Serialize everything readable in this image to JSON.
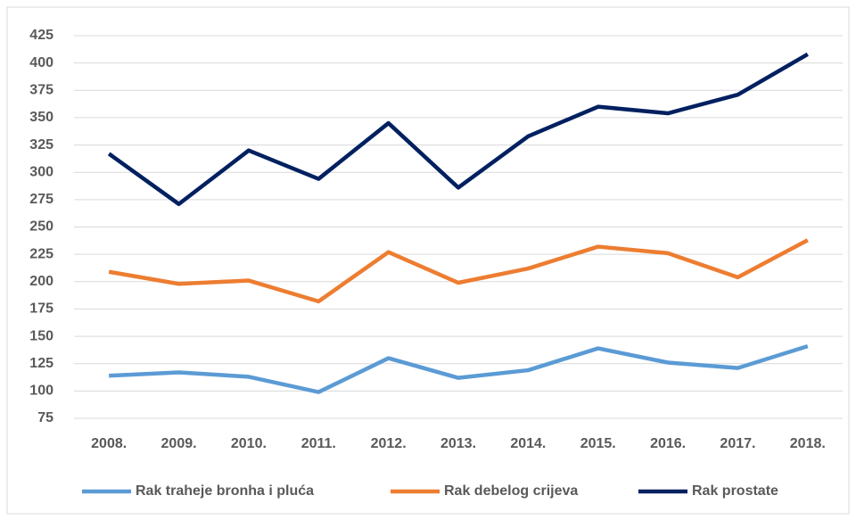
{
  "chart_data": {
    "type": "line",
    "categories": [
      "2008.",
      "2009.",
      "2010.",
      "2011.",
      "2012.",
      "2013.",
      "2014.",
      "2015.",
      "2016.",
      "2017.",
      "2018."
    ],
    "series": [
      {
        "name": "Rak traheje bronha i pluća",
        "color": "#5b9bd5",
        "values": [
          114,
          117,
          113,
          99,
          130,
          112,
          119,
          139,
          126,
          121,
          141
        ]
      },
      {
        "name": "Rak debelog crijeva",
        "color": "#ed7d31",
        "values": [
          209,
          198,
          201,
          182,
          227,
          199,
          212,
          232,
          226,
          204,
          238
        ]
      },
      {
        "name": "Rak prostate",
        "color": "#002060",
        "values": [
          317,
          271,
          320,
          294,
          345,
          286,
          333,
          360,
          354,
          371,
          408
        ]
      }
    ],
    "ylim": [
      75,
      425
    ],
    "yticks": [
      75,
      100,
      125,
      150,
      175,
      200,
      225,
      250,
      275,
      300,
      325,
      350,
      375,
      400,
      425
    ],
    "grid": true,
    "legend": "bottom"
  }
}
